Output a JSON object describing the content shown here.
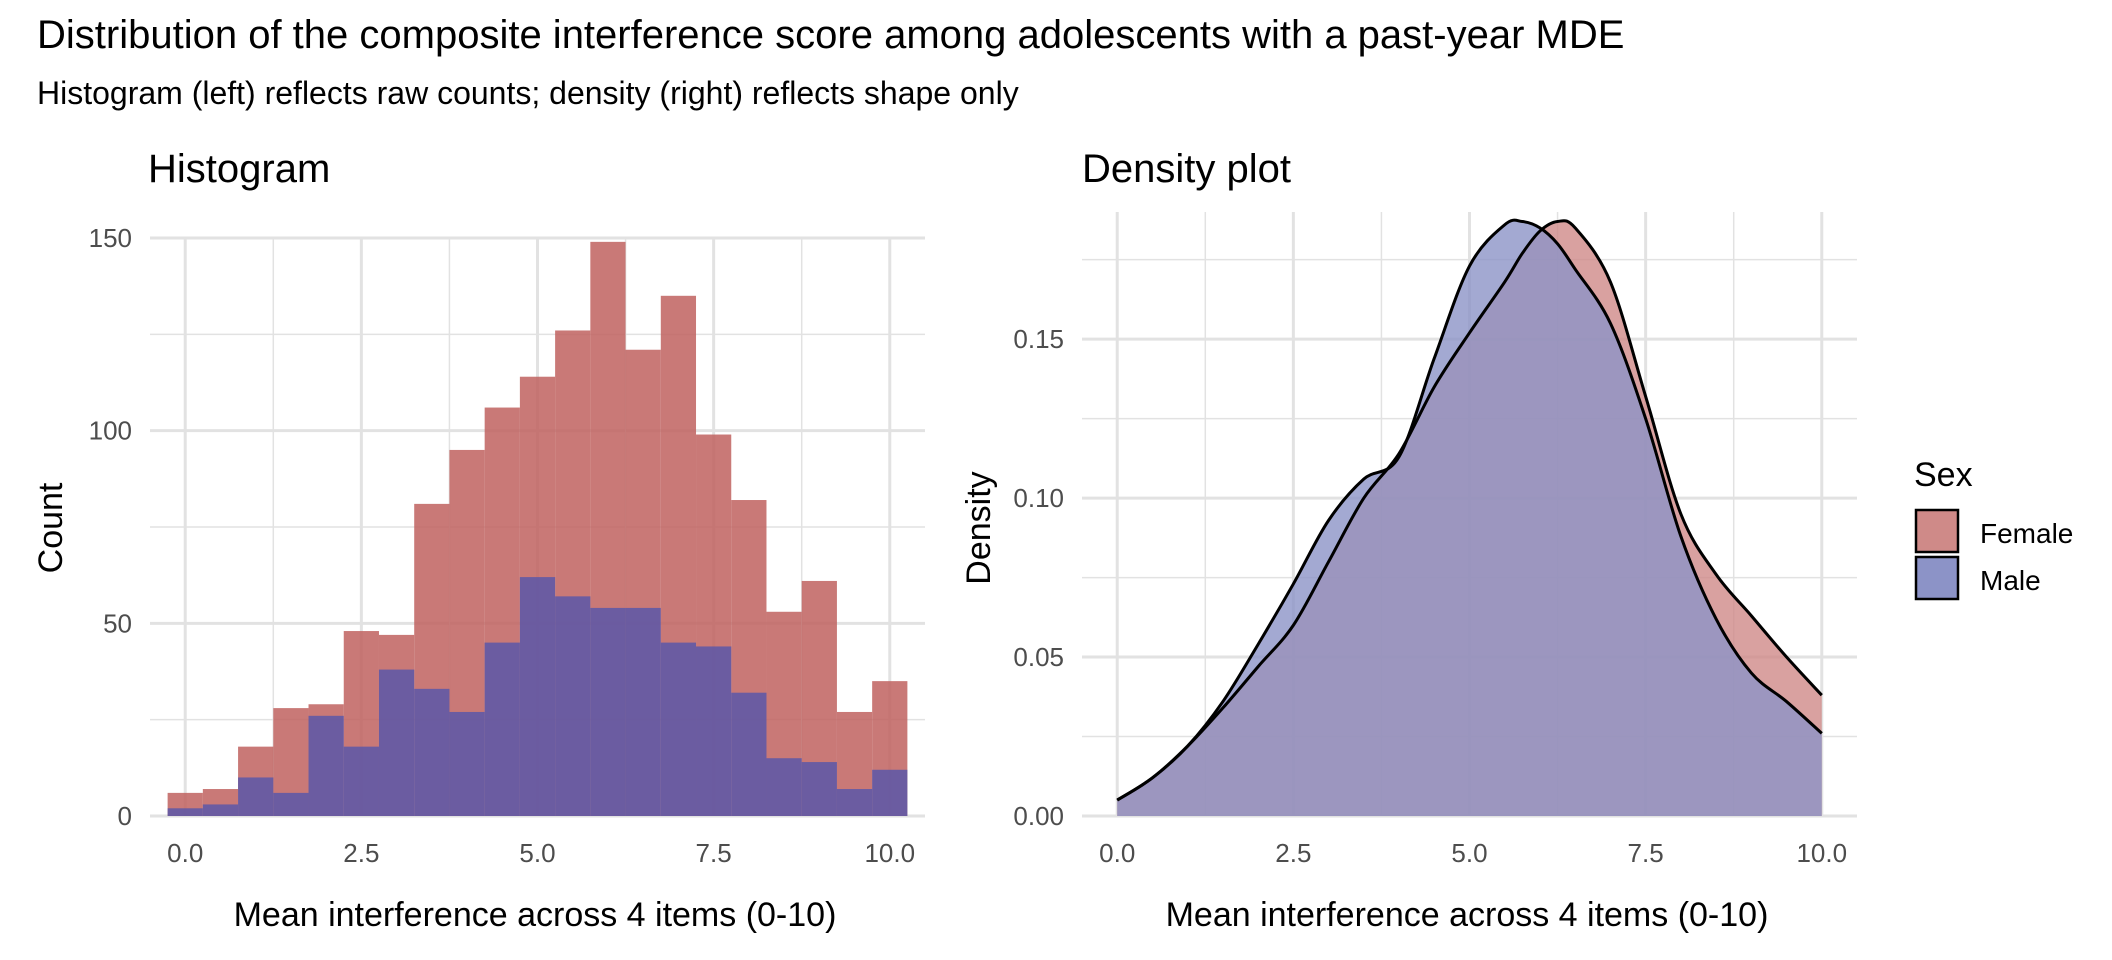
{
  "title": "Distribution of the composite interference score among adolescents with a past-year MDE",
  "subtitle": "Histogram (left) reflects raw counts; density (right) reflects shape only",
  "colors": {
    "female": "#c0615f",
    "male": "#5b57a8",
    "density_female": "#cf8a88",
    "density_male": "#8c93c7",
    "grid": "#e2e2e2"
  },
  "legend": {
    "title": "Sex",
    "items": [
      {
        "label": "Female",
        "key": "female"
      },
      {
        "label": "Male",
        "key": "male"
      }
    ],
    "placement": "right"
  },
  "chart_data": [
    {
      "type": "bar",
      "title": "Histogram",
      "xlabel": "Mean interference across 4 items (0-10)",
      "ylabel": "Count",
      "xlim": [
        -0.5,
        10.5
      ],
      "ylim": [
        0,
        150
      ],
      "xticks": [
        "0.0",
        "2.5",
        "5.0",
        "7.5",
        "10.0"
      ],
      "xtick_values": [
        0,
        2.5,
        5,
        7.5,
        10
      ],
      "yticks": [
        "0",
        "50",
        "100",
        "150"
      ],
      "ytick_values": [
        0,
        50,
        100,
        150
      ],
      "grid": true,
      "bin_width": 0.5,
      "bin_centers": [
        0,
        0.5,
        1,
        1.5,
        2,
        2.5,
        3,
        3.5,
        4,
        4.5,
        5,
        5.5,
        6,
        6.5,
        7,
        7.5,
        8,
        8.5,
        9,
        9.5,
        10
      ],
      "series": [
        {
          "name": "Female",
          "key": "female",
          "values": [
            6,
            7,
            18,
            28,
            29,
            48,
            47,
            81,
            95,
            106,
            114,
            126,
            149,
            121,
            135,
            99,
            82,
            53,
            61,
            27,
            35
          ]
        },
        {
          "name": "Male",
          "key": "male",
          "values": [
            2,
            3,
            10,
            6,
            26,
            18,
            38,
            33,
            27,
            45,
            62,
            57,
            54,
            54,
            45,
            44,
            32,
            15,
            14,
            7,
            12
          ]
        }
      ]
    },
    {
      "type": "area",
      "title": "Density plot",
      "xlabel": "Mean interference across 4 items (0-10)",
      "ylabel": "Density",
      "xlim": [
        -0.5,
        10.5
      ],
      "ylim": [
        0,
        0.19
      ],
      "xticks": [
        "0.0",
        "2.5",
        "5.0",
        "7.5",
        "10.0"
      ],
      "xtick_values": [
        0,
        2.5,
        5,
        7.5,
        10
      ],
      "yticks": [
        "0.00",
        "0.05",
        "0.10",
        "0.15"
      ],
      "ytick_values": [
        0,
        0.05,
        0.1,
        0.15
      ],
      "grid": true,
      "x": [
        0,
        0.5,
        1,
        1.5,
        2,
        2.5,
        3,
        3.5,
        4,
        4.5,
        5,
        5.5,
        5.75,
        6,
        6.25,
        6.5,
        7,
        7.5,
        8,
        8.5,
        9,
        9.5,
        10
      ],
      "series": [
        {
          "name": "Female",
          "key": "female",
          "values": [
            0.005,
            0.012,
            0.022,
            0.034,
            0.047,
            0.06,
            0.08,
            0.1,
            0.114,
            0.135,
            0.152,
            0.168,
            0.177,
            0.184,
            0.187,
            0.185,
            0.168,
            0.132,
            0.095,
            0.076,
            0.063,
            0.05,
            0.038
          ]
        },
        {
          "name": "Male",
          "key": "male",
          "values": [
            0.005,
            0.012,
            0.022,
            0.036,
            0.054,
            0.073,
            0.093,
            0.106,
            0.113,
            0.144,
            0.173,
            0.186,
            0.187,
            0.185,
            0.18,
            0.172,
            0.155,
            0.125,
            0.088,
            0.062,
            0.045,
            0.036,
            0.026
          ]
        }
      ]
    }
  ]
}
